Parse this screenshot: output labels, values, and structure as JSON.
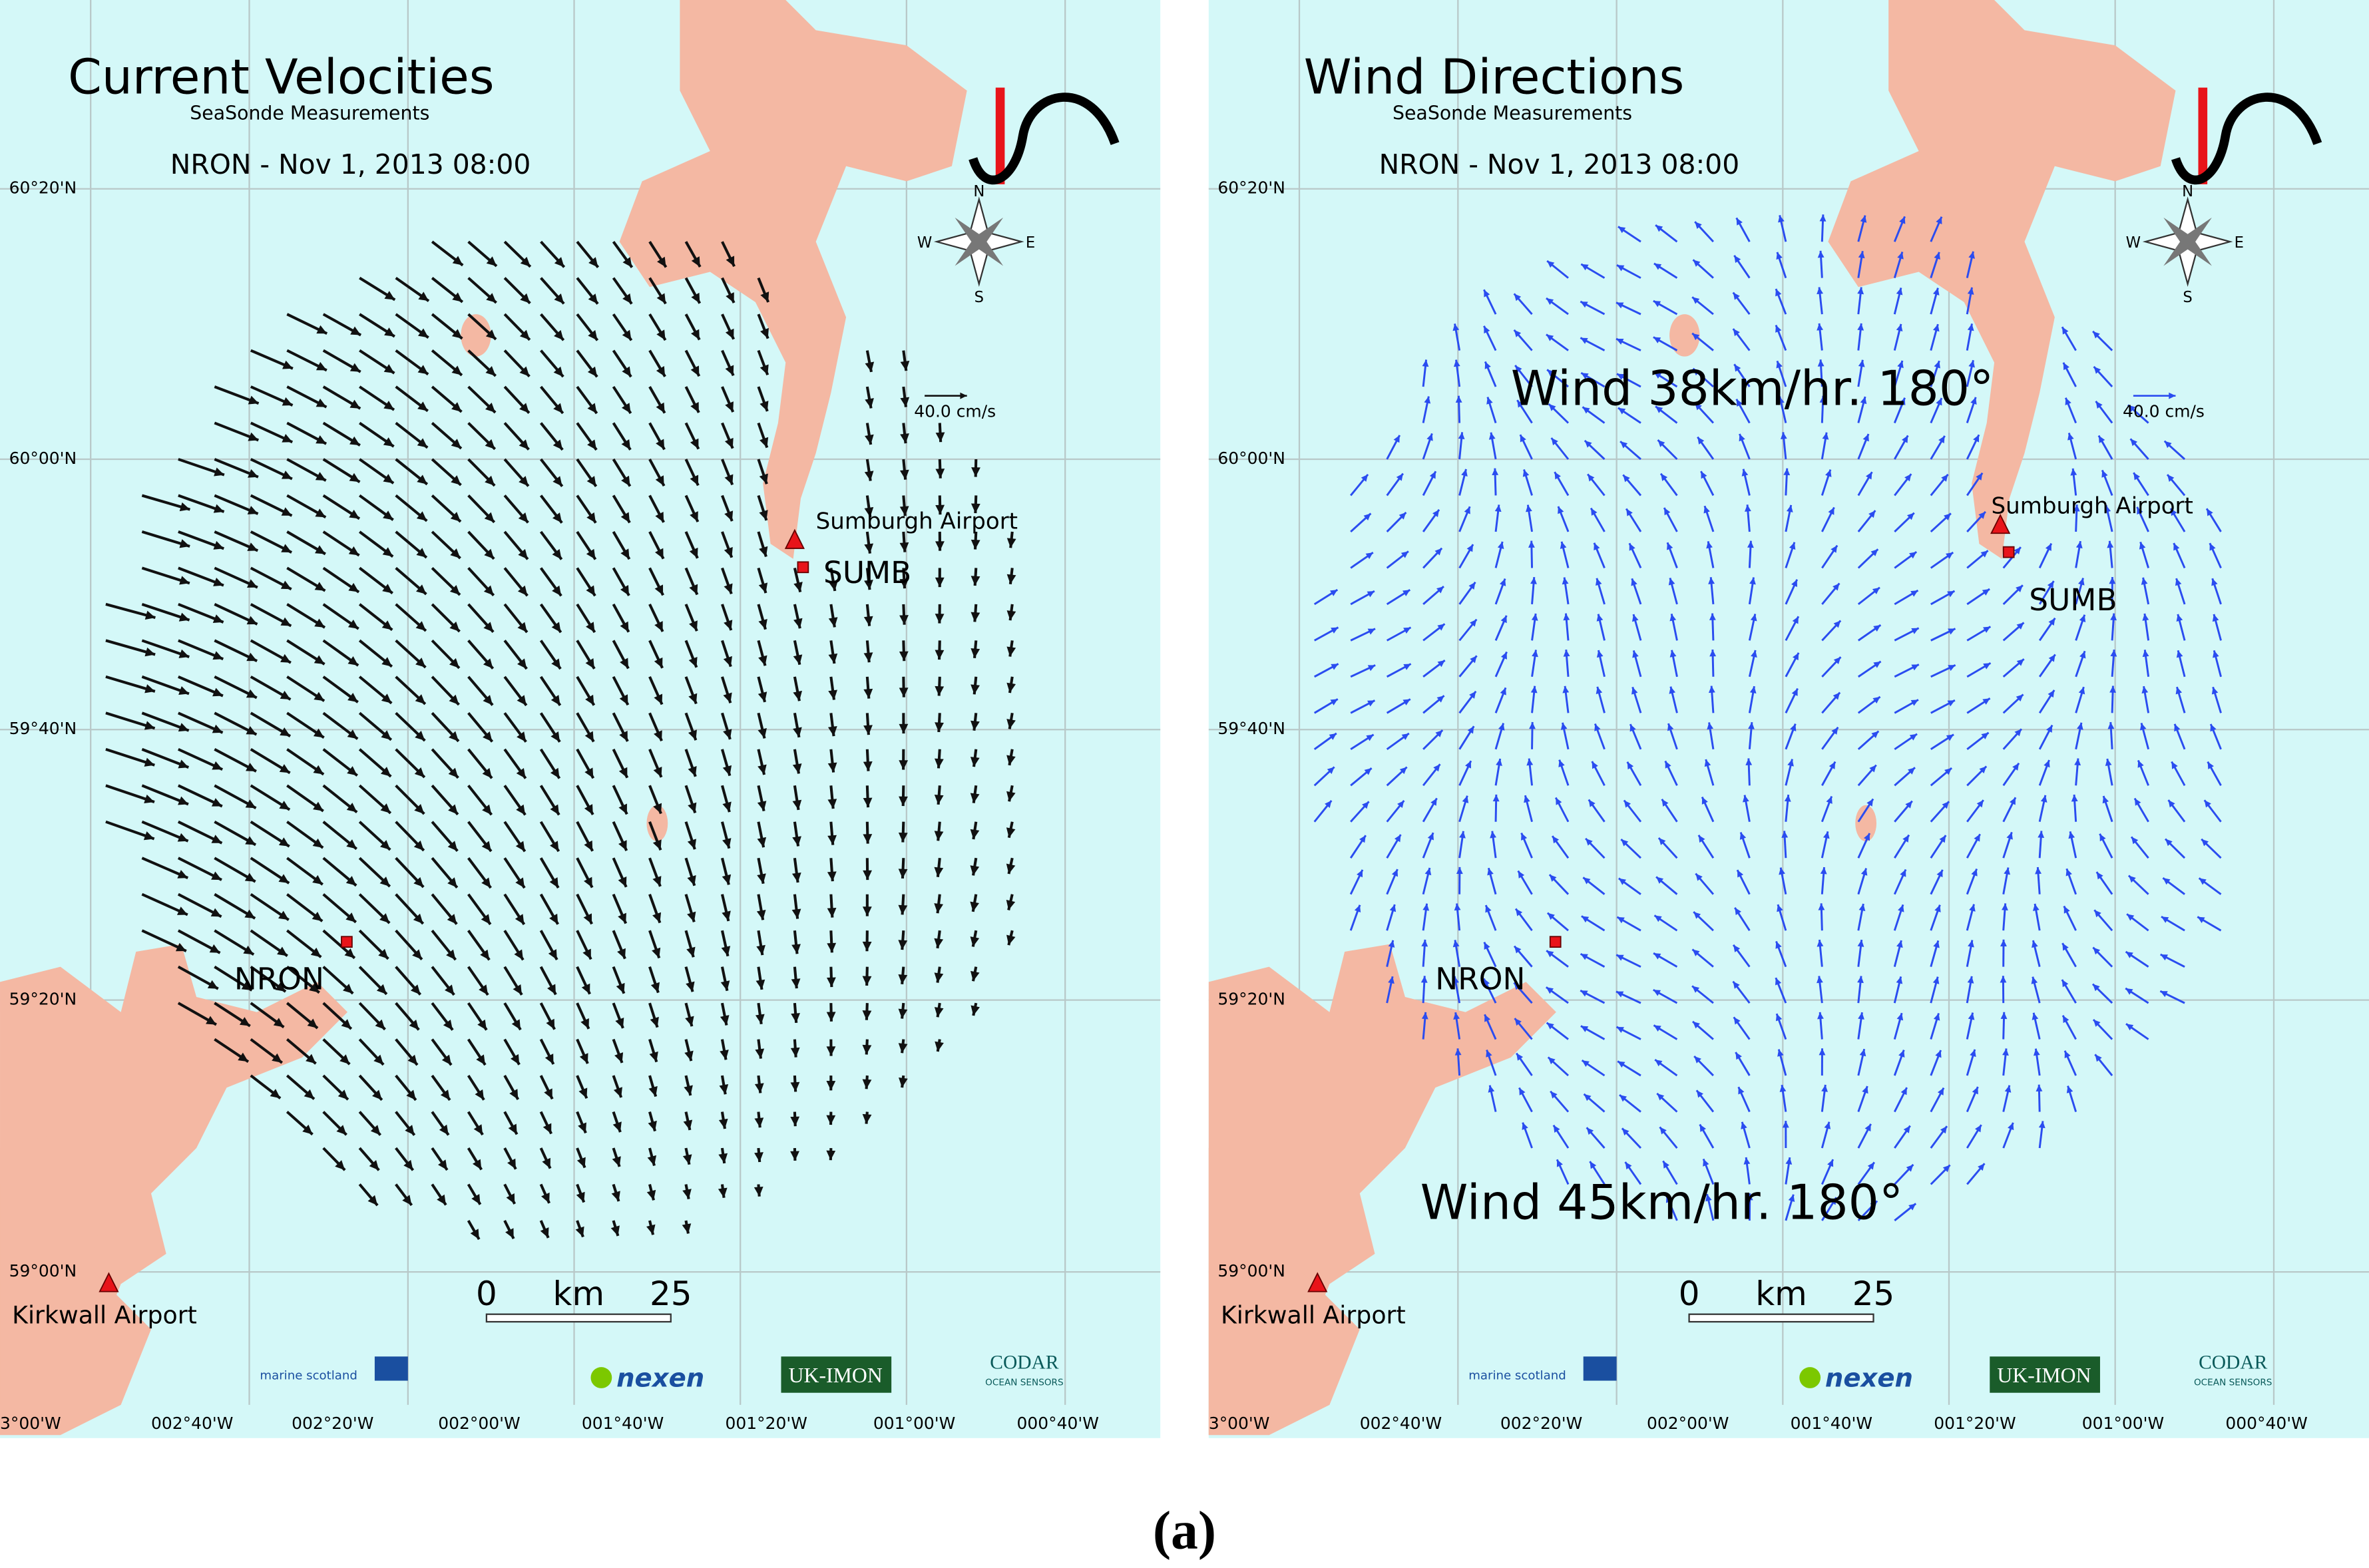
{
  "panels": [
    {
      "title": "Current Velocities",
      "subtitle": "SeaSonde Measurements",
      "station_time": "NRON - Nov 1, 2013 08:00",
      "speed_scale": "40.0 cm/s",
      "latitudes": [
        "60°20'N",
        "60°00'N",
        "59°40'N",
        "59°20'N",
        "59°00'N"
      ],
      "longitudes": [
        "3°00'W",
        "002°40'W",
        "002°20'W",
        "002°00'W",
        "001°40'W",
        "001°20'W",
        "001°00'W",
        "000°40'W"
      ],
      "places": {
        "sumburgh_airport": "Sumburgh Airport",
        "sumb": "SUMB",
        "nron": "NRON",
        "kirkwall_airport": "Kirkwall Airport"
      },
      "compass": {
        "n": "N",
        "s": "S",
        "w": "W",
        "e": "E"
      },
      "scale_bar": {
        "start": "0",
        "unit": "km",
        "end": "25"
      },
      "logos": {
        "marine": "marine scotland",
        "nexen": "nexen",
        "ukimon": "UK-IMON",
        "codar": "CODAR",
        "codar_sub": "OCEAN SENSORS"
      },
      "annotations": []
    },
    {
      "title": "Wind Directions",
      "subtitle": "SeaSonde Measurements",
      "station_time": "NRON - Nov 1, 2013 08:00",
      "speed_scale": "40.0 cm/s",
      "latitudes": [
        "60°20'N",
        "60°00'N",
        "59°40'N",
        "59°20'N",
        "59°00'N"
      ],
      "longitudes": [
        "3°00'W",
        "002°40'W",
        "002°20'W",
        "002°00'W",
        "001°40'W",
        "001°20'W",
        "001°00'W",
        "000°40'W"
      ],
      "places": {
        "sumburgh_airport": "Sumburgh Airport",
        "sumb": "SUMB",
        "nron": "NRON",
        "kirkwall_airport": "Kirkwall Airport"
      },
      "compass": {
        "n": "N",
        "s": "S",
        "w": "W",
        "e": "E"
      },
      "scale_bar": {
        "start": "0",
        "unit": "km",
        "end": "25"
      },
      "logos": {
        "marine": "marine scotland",
        "nexen": "nexen",
        "ukimon": "UK-IMON",
        "codar": "CODAR",
        "codar_sub": "OCEAN SENSORS"
      },
      "annotations": [
        "Wind 38km/hr. 180°",
        "Wind 45km/hr. 180°"
      ]
    }
  ],
  "caption": "(a)"
}
